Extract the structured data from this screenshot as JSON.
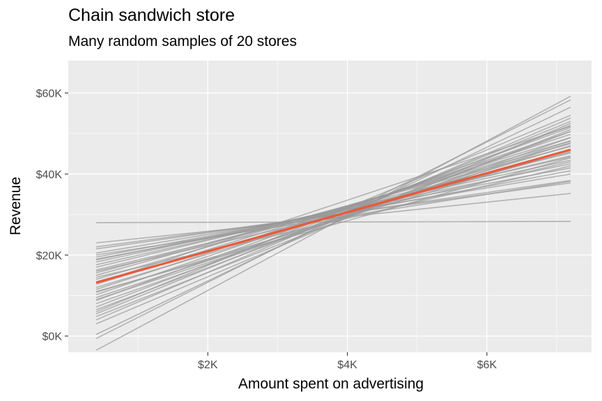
{
  "chart_data": {
    "type": "line",
    "title": "Chain sandwich store",
    "subtitle": "Many random samples of 20 stores",
    "xlabel": "Amount spent on advertising",
    "ylabel": "Revenue",
    "x_ticks": [
      {
        "value": 2000,
        "label": "$2K"
      },
      {
        "value": 4000,
        "label": "$4K"
      },
      {
        "value": 6000,
        "label": "$6K"
      }
    ],
    "y_ticks": [
      {
        "value": 0,
        "label": "$0K"
      },
      {
        "value": 20000,
        "label": "$20K"
      },
      {
        "value": 40000,
        "label": "$40K"
      },
      {
        "value": 60000,
        "label": "$60K"
      }
    ],
    "xlim": [
      0,
      7500
    ],
    "ylim": [
      -4000,
      68000
    ],
    "grid": true,
    "x_range": [
      400,
      7200
    ],
    "highlight_color": "#e85a3b",
    "sample_color": "#999999",
    "fitted_line": {
      "y_start": 13200,
      "y_end": 46000
    },
    "sample_lines": [
      {
        "y_start": 28000,
        "y_end": 28300
      },
      {
        "y_start": 23000,
        "y_end": 35200
      },
      {
        "y_start": 22000,
        "y_end": 37800
      },
      {
        "y_start": 21500,
        "y_end": 38400
      },
      {
        "y_start": 20500,
        "y_end": 40000
      },
      {
        "y_start": 19500,
        "y_end": 41500
      },
      {
        "y_start": 18800,
        "y_end": 42500
      },
      {
        "y_start": 18300,
        "y_end": 43400
      },
      {
        "y_start": 17600,
        "y_end": 44200
      },
      {
        "y_start": 17000,
        "y_end": 45200
      },
      {
        "y_start": 16300,
        "y_end": 44500
      },
      {
        "y_start": 15600,
        "y_end": 46800
      },
      {
        "y_start": 15000,
        "y_end": 47500
      },
      {
        "y_start": 14500,
        "y_end": 42000
      },
      {
        "y_start": 14000,
        "y_end": 48200
      },
      {
        "y_start": 13400,
        "y_end": 45500
      },
      {
        "y_start": 12800,
        "y_end": 49000
      },
      {
        "y_start": 12000,
        "y_end": 47000
      },
      {
        "y_start": 11500,
        "y_end": 49800
      },
      {
        "y_start": 10800,
        "y_end": 46000
      },
      {
        "y_start": 10200,
        "y_end": 50500
      },
      {
        "y_start": 9500,
        "y_end": 48200
      },
      {
        "y_start": 8800,
        "y_end": 51500
      },
      {
        "y_start": 8000,
        "y_end": 49000
      },
      {
        "y_start": 7200,
        "y_end": 52000
      },
      {
        "y_start": 6500,
        "y_end": 50500
      },
      {
        "y_start": 5500,
        "y_end": 53000
      },
      {
        "y_start": 4800,
        "y_end": 51000
      },
      {
        "y_start": 4000,
        "y_end": 53800
      },
      {
        "y_start": 3000,
        "y_end": 52500
      },
      {
        "y_start": 400,
        "y_end": 56500
      },
      {
        "y_start": -600,
        "y_end": 58300
      },
      {
        "y_start": -3500,
        "y_end": 59200
      },
      {
        "y_start": 16000,
        "y_end": 43000
      },
      {
        "y_start": 11000,
        "y_end": 44000
      },
      {
        "y_start": 19000,
        "y_end": 40800
      },
      {
        "y_start": 9000,
        "y_end": 47800
      },
      {
        "y_start": 13000,
        "y_end": 51800
      },
      {
        "y_start": 6000,
        "y_end": 54500
      },
      {
        "y_start": 20000,
        "y_end": 38200
      }
    ]
  }
}
